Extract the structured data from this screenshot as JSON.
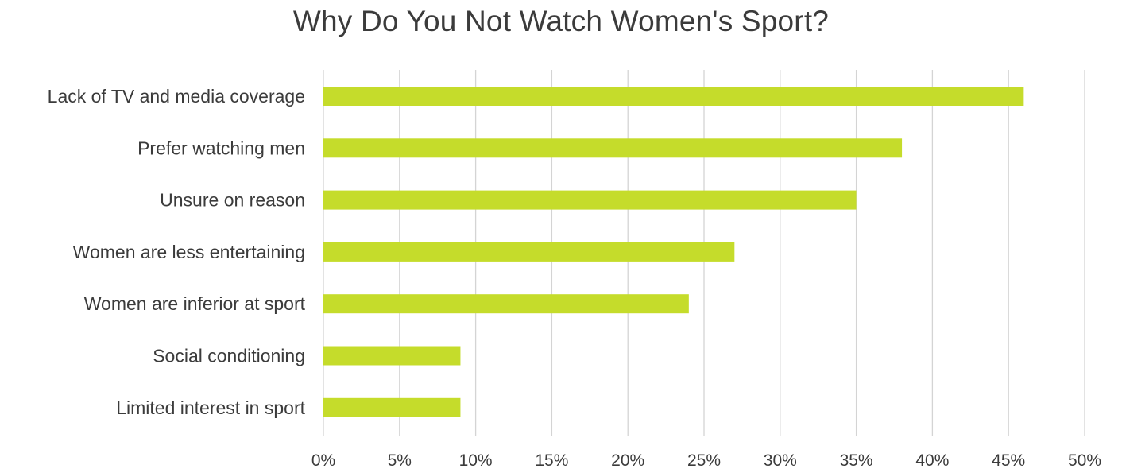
{
  "chart_data": {
    "type": "bar",
    "orientation": "horizontal",
    "title": "Why Do You Not Watch Women's Sport?",
    "categories": [
      "Lack of TV and media coverage",
      "Prefer watching men",
      "Unsure on reason",
      "Women are less entertaining",
      "Women are inferior at sport",
      "Social conditioning",
      "Limited interest in sport"
    ],
    "values": [
      46,
      38,
      35,
      27,
      24,
      9,
      9
    ],
    "unit": "%",
    "xlim": [
      0,
      50
    ],
    "xticks": [
      0,
      5,
      10,
      15,
      20,
      25,
      30,
      35,
      40,
      45,
      50
    ],
    "xtick_labels": [
      "0%",
      "5%",
      "10%",
      "15%",
      "20%",
      "25%",
      "30%",
      "35%",
      "40%",
      "45%",
      "50%"
    ],
    "grid": true,
    "legend": "none",
    "colors": {
      "bar": "#c5dc2b",
      "grid": "#d4d4d4",
      "text": "#3b3b3b"
    }
  }
}
